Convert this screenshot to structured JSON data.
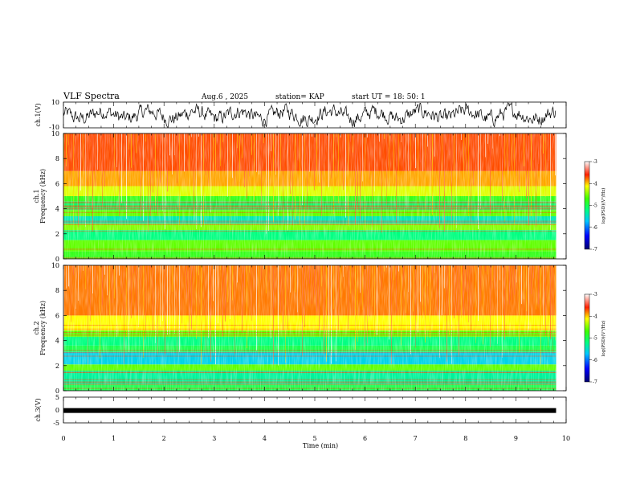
{
  "header": {
    "title": "VLF Spectra",
    "date": "Aug.6 , 2025",
    "station": "station= KAP",
    "start": "start UT = 18: 50: 1"
  },
  "chart_data": [
    {
      "type": "line",
      "panel": "ch1-waveform",
      "ylabel": "ch.1(V)",
      "ylim": [
        -10,
        10
      ],
      "yticks": [
        "10",
        "-10"
      ],
      "xlim": [
        0,
        10
      ],
      "x_extent": [
        0,
        9.8
      ],
      "description_series": "noisy voltage trace centred near 0 V"
    },
    {
      "type": "heatmap",
      "panel": "ch1-spectrogram",
      "ylabel": "Frequency (kHz)",
      "channel_label": "ch.1",
      "ylim": [
        0,
        10
      ],
      "yticks": [
        "0",
        "2",
        "4",
        "6",
        "8",
        "10"
      ],
      "xlim": [
        0,
        10
      ],
      "x_extent": [
        0,
        9.8
      ],
      "colorbar": {
        "label": "log(PSD)(V²/Hz)",
        "range": [
          -7,
          -3
        ],
        "ticks": [
          "-3",
          "-4",
          "-5",
          "-6",
          "-7"
        ]
      },
      "bands": [
        {
          "from_khz": 0.0,
          "to_khz": 0.6,
          "level": -4.8
        },
        {
          "from_khz": 0.6,
          "to_khz": 1.5,
          "level": -4.6
        },
        {
          "from_khz": 1.5,
          "to_khz": 2.3,
          "level": -5.2
        },
        {
          "from_khz": 2.3,
          "to_khz": 2.8,
          "level": -4.5
        },
        {
          "from_khz": 2.8,
          "to_khz": 3.4,
          "level": -5.4
        },
        {
          "from_khz": 3.4,
          "to_khz": 3.9,
          "level": -4.6
        },
        {
          "from_khz": 3.9,
          "to_khz": 4.6,
          "level": -5.1
        },
        {
          "from_khz": 4.6,
          "to_khz": 5.0,
          "level": -4.8
        },
        {
          "from_khz": 5.0,
          "to_khz": 5.8,
          "level": -4.2
        },
        {
          "from_khz": 5.8,
          "to_khz": 7.0,
          "level": -3.9
        },
        {
          "from_khz": 7.0,
          "to_khz": 10.0,
          "level": -3.7
        }
      ]
    },
    {
      "type": "heatmap",
      "panel": "ch2-spectrogram",
      "ylabel": "Frequency (kHz)",
      "channel_label": "ch.2",
      "ylim": [
        0,
        10
      ],
      "yticks": [
        "0",
        "2",
        "4",
        "6",
        "8",
        "10"
      ],
      "xlim": [
        0,
        10
      ],
      "x_extent": [
        0,
        9.8
      ],
      "colorbar": {
        "label": "log(PSD)(V²/Hz)",
        "range": [
          -7,
          -3
        ],
        "ticks": [
          "-3",
          "-4",
          "-5",
          "-6",
          "-7"
        ]
      },
      "bands": [
        {
          "from_khz": 0.0,
          "to_khz": 0.5,
          "level": -5.0
        },
        {
          "from_khz": 0.5,
          "to_khz": 1.6,
          "level": -5.3
        },
        {
          "from_khz": 1.6,
          "to_khz": 2.1,
          "level": -4.6
        },
        {
          "from_khz": 2.1,
          "to_khz": 3.1,
          "level": -5.6
        },
        {
          "from_khz": 3.1,
          "to_khz": 3.6,
          "level": -5.0
        },
        {
          "from_khz": 3.6,
          "to_khz": 4.3,
          "level": -5.2
        },
        {
          "from_khz": 4.3,
          "to_khz": 4.8,
          "level": -4.6
        },
        {
          "from_khz": 4.8,
          "to_khz": 6.0,
          "level": -4.1
        },
        {
          "from_khz": 6.0,
          "to_khz": 10.0,
          "level": -3.8
        }
      ]
    },
    {
      "type": "line",
      "panel": "ch3-waveform",
      "ylabel": "ch.3(V)",
      "ylim": [
        -5,
        5
      ],
      "yticks": [
        "5",
        "0",
        "-5"
      ],
      "xlim": [
        0,
        10
      ],
      "x_extent": [
        0,
        9.8
      ],
      "constant_value": -0.2,
      "xlabel": "Time (min)",
      "xticks": [
        "0",
        "1",
        "2",
        "3",
        "4",
        "5",
        "6",
        "7",
        "8",
        "9",
        "10"
      ]
    }
  ]
}
